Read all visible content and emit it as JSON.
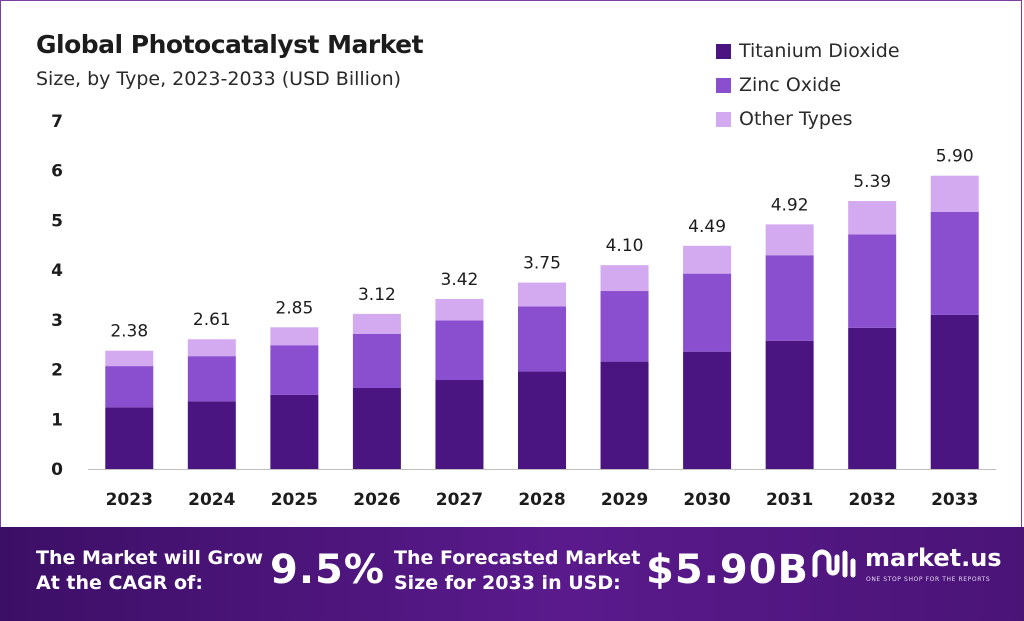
{
  "chart_data": {
    "type": "bar",
    "stacked": true,
    "title": "Global Photocatalyst Market",
    "subtitle": "Size, by Type, 2023-2033 (USD Billion)",
    "categories": [
      "2023",
      "2024",
      "2025",
      "2026",
      "2027",
      "2028",
      "2029",
      "2030",
      "2031",
      "2032",
      "2033"
    ],
    "series": [
      {
        "name": "Titanium Dioxide",
        "color": "#4a1580",
        "values": [
          1.24,
          1.36,
          1.49,
          1.63,
          1.79,
          1.96,
          2.16,
          2.36,
          2.58,
          2.84,
          3.1
        ]
      },
      {
        "name": "Zinc Oxide",
        "color": "#8a4fcf",
        "values": [
          0.83,
          0.91,
          1.0,
          1.09,
          1.2,
          1.31,
          1.42,
          1.57,
          1.72,
          1.88,
          2.07
        ]
      },
      {
        "name": "Other Types",
        "color": "#d3a9ef",
        "values": [
          0.31,
          0.34,
          0.36,
          0.4,
          0.43,
          0.48,
          0.52,
          0.56,
          0.62,
          0.67,
          0.73
        ]
      }
    ],
    "totals": [
      "2.38",
      "2.61",
      "2.85",
      "3.12",
      "3.42",
      "3.75",
      "4.10",
      "4.49",
      "4.92",
      "5.39",
      "5.90"
    ],
    "yticks": [
      "0",
      "1",
      "2",
      "3",
      "4",
      "5",
      "6",
      "7"
    ],
    "ylim": [
      0,
      7
    ],
    "grid": false,
    "legend": "top-right"
  },
  "footer": {
    "cagr_label_line1": "The Market will Grow",
    "cagr_label_line2": "At the CAGR of:",
    "cagr_value": "9.5%",
    "forecast_label_line1": "The Forecasted Market",
    "forecast_label_line2": "Size for 2033 in USD:",
    "forecast_value": "$5.90B",
    "brand_name": "market.us",
    "brand_tagline": "ONE STOP SHOP FOR THE REPORTS"
  },
  "colors": {
    "footer_bg": "#4a1477",
    "axis": "#bfbfbf"
  }
}
